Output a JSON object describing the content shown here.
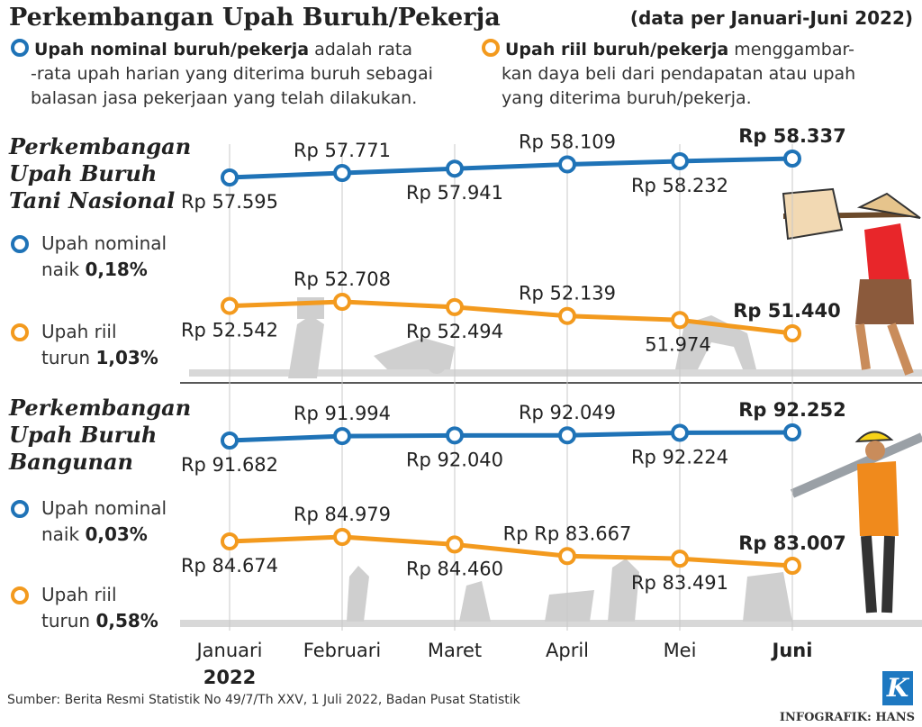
{
  "header": {
    "title": "Perkembangan Upah Buruh/Pekerja",
    "period": "(data per Januari-Juni 2022)"
  },
  "legend": {
    "nominal": {
      "term": "Upah nominal buruh/pekerja",
      "line1": " adalah rata",
      "line2": "-rata upah harian yang diterima buruh sebagai",
      "line3": "balasan jasa pekerjaan yang telah dilakukan."
    },
    "real": {
      "term": "Upah riil buruh/pekerja",
      "line1": " menggambar-",
      "line2": "kan daya beli dari pendapatan atau upah",
      "line3": "yang diterima buruh/pekerja."
    }
  },
  "sections": {
    "farm": {
      "title1": "Perkembangan",
      "title2": "Upah Buruh",
      "title3": "Tani Nasional",
      "nominal_label": "Upah nominal",
      "nominal_dir": "naik",
      "nominal_change": "0,18%",
      "real_label": "Upah riil",
      "real_dir": "turun",
      "real_change": "1,03%"
    },
    "construction": {
      "title1": "Perkembangan",
      "title2": "Upah Buruh",
      "title3": "Bangunan",
      "nominal_label": "Upah nominal",
      "nominal_dir": "naik",
      "nominal_change": "0,03%",
      "real_label": "Upah riil",
      "real_dir": "turun",
      "real_change": "0,58%"
    }
  },
  "colors": {
    "nominal": "#1f73b7",
    "real": "#f39a1e"
  },
  "chart_data": {
    "type": "line",
    "title": "Perkembangan Upah Buruh/Pekerja",
    "categories": [
      "Januari",
      "Februari",
      "Maret",
      "April",
      "Mei",
      "Juni"
    ],
    "year_label": "2022",
    "charts": [
      {
        "name": "Perkembangan Upah Buruh Tani Nasional",
        "series": [
          {
            "name": "Upah nominal",
            "values": [
              57595,
              57771,
              57941,
              58109,
              58232,
              58337
            ],
            "labels": [
              "Rp 57.595",
              "Rp 57.771",
              "Rp 57.941",
              "Rp 58.109",
              "Rp 58.232",
              "Rp 58.337"
            ]
          },
          {
            "name": "Upah riil",
            "values": [
              52542,
              52708,
              52494,
              52139,
              51974,
              51440
            ],
            "labels": [
              "Rp 52.542",
              "Rp 52.708",
              "Rp 52.494",
              "Rp 52.139",
              "51.974",
              "Rp 51.440"
            ]
          }
        ]
      },
      {
        "name": "Perkembangan Upah Buruh Bangunan",
        "series": [
          {
            "name": "Upah nominal",
            "values": [
              91682,
              91994,
              92040,
              92049,
              92224,
              92252
            ],
            "labels": [
              "Rp 91.682",
              "Rp 91.994",
              "Rp 92.040",
              "Rp 92.049",
              "Rp 92.224",
              "Rp 92.252"
            ]
          },
          {
            "name": "Upah riil",
            "values": [
              84674,
              84979,
              84460,
              83667,
              83491,
              83007
            ],
            "labels": [
              "Rp 84.674",
              "Rp 84.979",
              "Rp 84.460",
              "Rp Rp 83.667",
              "Rp 83.491",
              "Rp 83.007"
            ]
          }
        ]
      }
    ]
  },
  "footer": {
    "source": "Sumber: Berita Resmi Statistik No 49/7/Th XXV, 1 Juli 2022, Badan Pusat Statistik",
    "credit": "INFOGRAFIK: HANS",
    "logo": "K"
  }
}
